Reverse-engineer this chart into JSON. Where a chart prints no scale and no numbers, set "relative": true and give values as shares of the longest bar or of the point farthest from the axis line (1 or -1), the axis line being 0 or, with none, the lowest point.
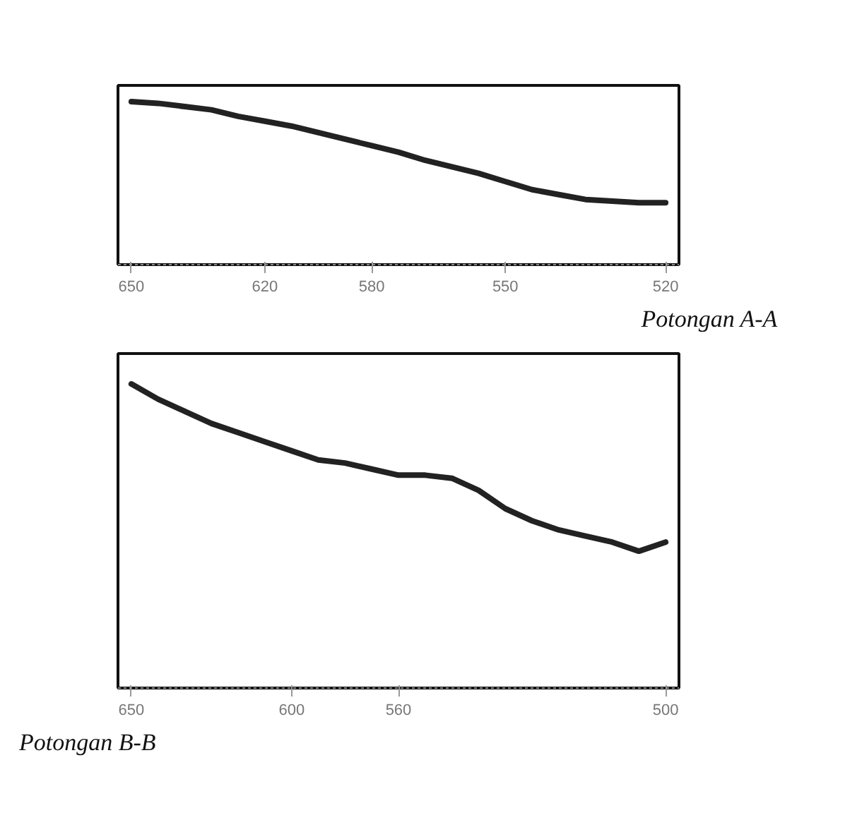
{
  "chart_data": [
    {
      "type": "line",
      "title": "Potongan A-A",
      "relative": true,
      "color": "#222222",
      "categories": [
        "650",
        null,
        null,
        null,
        null,
        "620",
        null,
        null,
        null,
        "580",
        null,
        null,
        null,
        null,
        "550",
        null,
        null,
        null,
        null,
        null,
        "520"
      ],
      "values": [
        1.0,
        0.99,
        0.97,
        0.95,
        0.91,
        0.88,
        0.85,
        0.81,
        0.77,
        0.73,
        0.69,
        0.64,
        0.6,
        0.56,
        0.51,
        0.46,
        0.43,
        0.4,
        0.39,
        0.38,
        0.38
      ]
    },
    {
      "type": "line",
      "title": "Potongan B-B",
      "relative": true,
      "color": "#222222",
      "categories": [
        "650",
        null,
        null,
        null,
        null,
        null,
        "600",
        null,
        null,
        null,
        "560",
        null,
        null,
        null,
        null,
        null,
        null,
        null,
        null,
        null,
        "500"
      ],
      "values": [
        1.0,
        0.95,
        0.91,
        0.87,
        0.84,
        0.81,
        0.78,
        0.75,
        0.74,
        0.72,
        0.7,
        0.7,
        0.69,
        0.65,
        0.59,
        0.55,
        0.52,
        0.5,
        0.48,
        0.45,
        0.48
      ]
    }
  ]
}
